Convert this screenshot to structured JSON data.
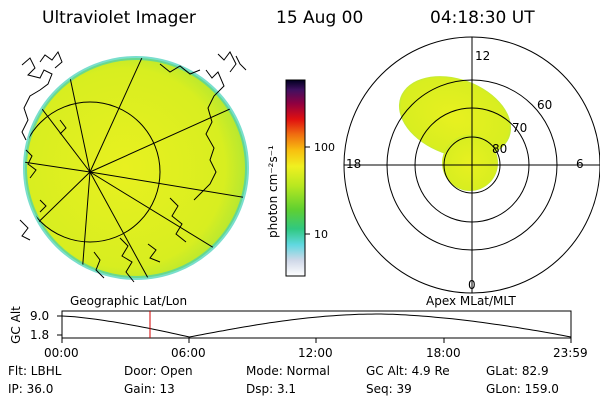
{
  "header": {
    "title": "Ultraviolet Imager",
    "date": "15 Aug 00",
    "time": "04:18:30 UT"
  },
  "colorbar": {
    "unit_label": "photon cm⁻²s⁻¹",
    "ticks": [
      {
        "label": "100",
        "value": 100
      },
      {
        "label": "10",
        "value": 10
      }
    ],
    "scale": "log"
  },
  "polar_plot": {
    "mlt_labels": {
      "top": "12",
      "left": "18",
      "right": "6",
      "bottom": "0"
    },
    "lat_labels": [
      "60",
      "70",
      "80"
    ]
  },
  "panel_labels": {
    "left": "Geographic Lat/Lon",
    "right": "Apex MLat/MLT"
  },
  "altitude_plot": {
    "ylabel": "GC Alt",
    "yticks": [
      "9.0",
      "1.8"
    ],
    "xticks": [
      "00:00",
      "06:00",
      "12:00",
      "18:00",
      "23:59"
    ],
    "marker_time": "04:18:30"
  },
  "info": {
    "row1": {
      "filter": "Flt: LBHL",
      "door": "Door: Open",
      "mode": "Mode: Normal",
      "gc_alt": "GC Alt: 4.9 Re",
      "glat": "GLat:  82.9"
    },
    "row2": {
      "ip": "IP: 36.0",
      "gain": "Gain: 13",
      "dsp": "Dsp:    3.1",
      "seq": "Seq: 39",
      "glon": "GLon: 159.0"
    }
  },
  "colors": {
    "fill_main": "#e6f21a",
    "fill_edge": "#44e0c0",
    "marker": "#d40000"
  }
}
